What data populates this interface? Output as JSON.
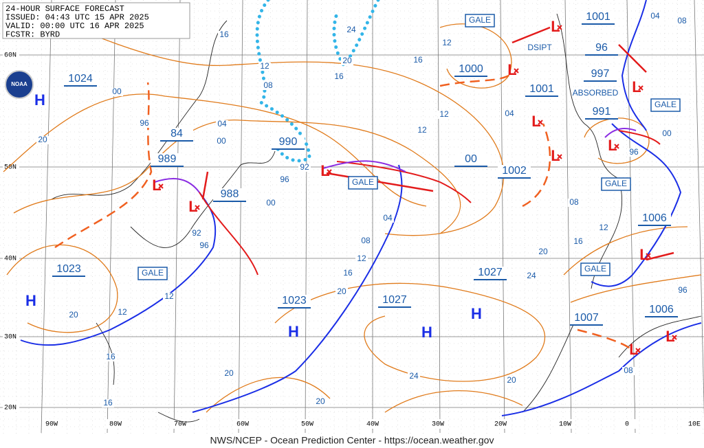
{
  "header": {
    "lines": [
      "24-HOUR SURFACE FORECAST",
      "ISSUED: 04:43 UTC 15 APR 2025",
      "VALID:  00:00 UTC 16 APR 2025",
      "FCSTR:  BYRD"
    ]
  },
  "footer": "NWS/NCEP - Ocean Prediction Center - https://ocean.weather.gov",
  "logo": "NOAA",
  "latitude_labels": [
    "60N",
    "50N",
    "40N",
    "30N",
    "20N"
  ],
  "longitude_labels": [
    "90W",
    "80W",
    "70W",
    "60W",
    "50W",
    "40W",
    "30W",
    "20W",
    "10W",
    "0",
    "10E"
  ],
  "pressure_labels": [
    "1024",
    "84",
    "989",
    "988",
    "990",
    "00",
    "1000",
    "1001",
    "1002",
    "1001",
    "96",
    "997",
    "991",
    "1023",
    "1023",
    "1027",
    "1027",
    "1006",
    "1007",
    "1006"
  ],
  "isobar_labels": [
    "16",
    "12",
    "08",
    "04",
    "00",
    "96",
    "20",
    "00",
    "24",
    "20",
    "16",
    "16",
    "12",
    "12",
    "12",
    "04",
    "92",
    "96",
    "00",
    "04",
    "08",
    "12",
    "16",
    "20",
    "24",
    "20",
    "16",
    "12",
    "08",
    "96",
    "00",
    "04",
    "08",
    "92",
    "96",
    "12",
    "20",
    "12",
    "16",
    "16",
    "20",
    "20",
    "24",
    "20",
    "08",
    "96"
  ],
  "gale_labels": [
    "GALE",
    "GALE",
    "GALE",
    "GALE",
    "GALE",
    "GALE"
  ],
  "high_labels": [
    "H",
    "H",
    "H",
    "H",
    "H"
  ],
  "low_labels": [
    "L",
    "L",
    "L",
    "L",
    "L",
    "L",
    "L",
    "L",
    "L",
    "L",
    "L",
    "L"
  ],
  "annotations": [
    "DSIPT",
    "ABSORBED"
  ]
}
